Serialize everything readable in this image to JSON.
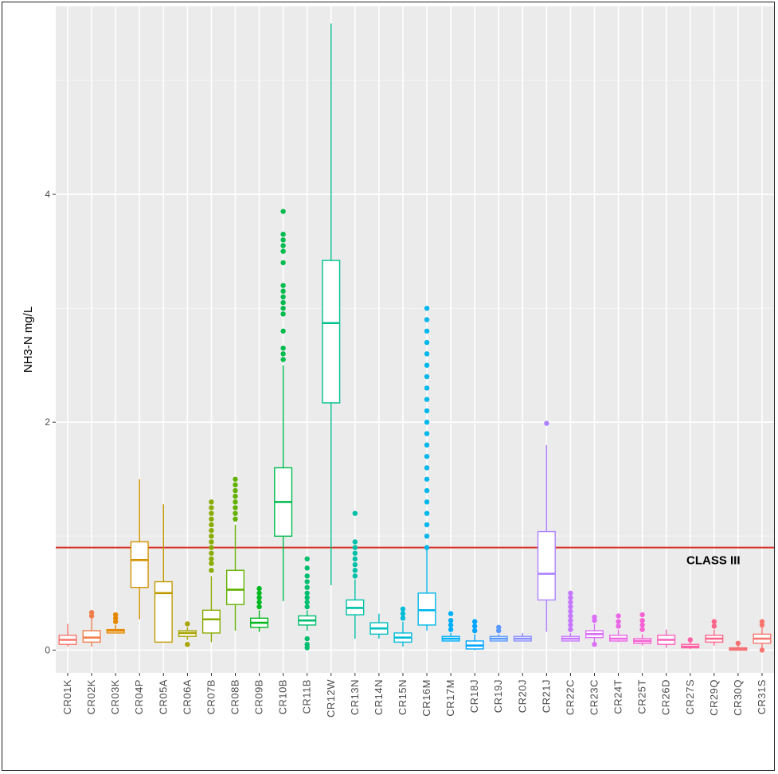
{
  "chart_data": {
    "type": "boxplot",
    "ylabel": "NH3-N mg/L",
    "xlabel": "",
    "ylim": [
      -0.2,
      5.65
    ],
    "yticks": [
      0,
      2,
      4
    ],
    "grid": true,
    "reference_line": {
      "value": 0.9,
      "label": "CLASS III",
      "color": "#d73027"
    },
    "categories": [
      "CR01K",
      "CR02K",
      "CR03K",
      "CR04P",
      "CR05A",
      "CR06A",
      "CR07B",
      "CR08B",
      "CR09B",
      "CR10B",
      "CR11B",
      "CR12W",
      "CR13N",
      "CR14N",
      "CR15N",
      "CR16M",
      "CR17M",
      "CR18J",
      "CR19J",
      "CR20J",
      "CR21J",
      "CR22C",
      "CR23C",
      "CR24T",
      "CR25T",
      "CR26D",
      "CR27S",
      "CR29Q",
      "CR30Q",
      "CR31S"
    ],
    "colors": [
      "#F8766D",
      "#F07E4B",
      "#E48800",
      "#D49200",
      "#C09B00",
      "#A8A400",
      "#8AAB00",
      "#61B200",
      "#00B81F",
      "#00BB4E",
      "#00BE6F",
      "#00C08C",
      "#00C0A7",
      "#00BFC0",
      "#00BCD7",
      "#00B7EB",
      "#00AFFA",
      "#00A5FF",
      "#5A9AFF",
      "#8B8EFF",
      "#AD82FF",
      "#C677FF",
      "#DB6EF7",
      "#EA67E6",
      "#F564D2",
      "#FB62BC",
      "#FD63A4",
      "#FB678B",
      "#F67172",
      "#F8766D"
    ],
    "boxes": [
      {
        "q1": 0.05,
        "median": 0.09,
        "q3": 0.13,
        "whisker_low": 0.03,
        "whisker_high": 0.23,
        "outliers": []
      },
      {
        "q1": 0.07,
        "median": 0.11,
        "q3": 0.17,
        "whisker_low": 0.03,
        "whisker_high": 0.29,
        "outliers": [
          0.3,
          0.33
        ]
      },
      {
        "q1": 0.15,
        "median": 0.17,
        "q3": 0.18,
        "whisker_low": 0.15,
        "whisker_high": 0.22,
        "outliers": [
          0.25,
          0.28,
          0.31
        ]
      },
      {
        "q1": 0.55,
        "median": 0.79,
        "q3": 0.95,
        "whisker_low": 0.27,
        "whisker_high": 1.5,
        "outliers": []
      },
      {
        "q1": 0.07,
        "median": 0.5,
        "q3": 0.6,
        "whisker_low": 0.07,
        "whisker_high": 1.28,
        "outliers": []
      },
      {
        "q1": 0.12,
        "median": 0.15,
        "q3": 0.17,
        "whisker_low": 0.09,
        "whisker_high": 0.2,
        "outliers": [
          0.05,
          0.23
        ]
      },
      {
        "q1": 0.15,
        "median": 0.27,
        "q3": 0.35,
        "whisker_low": 0.07,
        "whisker_high": 0.65,
        "outliers": [
          0.7,
          0.76,
          0.8,
          0.85,
          0.9,
          0.95,
          1.0,
          1.05,
          1.1,
          1.15,
          1.2,
          1.25,
          1.3
        ]
      },
      {
        "q1": 0.4,
        "median": 0.53,
        "q3": 0.7,
        "whisker_low": 0.17,
        "whisker_high": 1.1,
        "outliers": [
          1.15,
          1.2,
          1.25,
          1.3,
          1.35,
          1.4,
          1.45,
          1.5
        ]
      },
      {
        "q1": 0.2,
        "median": 0.24,
        "q3": 0.28,
        "whisker_low": 0.16,
        "whisker_high": 0.35,
        "outliers": [
          0.38,
          0.42,
          0.46,
          0.5,
          0.54
        ]
      },
      {
        "q1": 1.0,
        "median": 1.3,
        "q3": 1.6,
        "whisker_low": 0.43,
        "whisker_high": 2.5,
        "outliers": [
          2.55,
          2.6,
          2.65,
          2.8,
          2.95,
          3.0,
          3.05,
          3.1,
          3.15,
          3.2,
          3.4,
          3.5,
          3.55,
          3.6,
          3.65,
          3.85
        ]
      },
      {
        "q1": 0.22,
        "median": 0.26,
        "q3": 0.3,
        "whisker_low": 0.17,
        "whisker_high": 0.35,
        "outliers": [
          0.02,
          0.05,
          0.1,
          0.38,
          0.42,
          0.46,
          0.5,
          0.55,
          0.6,
          0.65,
          0.72,
          0.8
        ]
      },
      {
        "q1": 2.17,
        "median": 2.87,
        "q3": 3.42,
        "whisker_low": 0.57,
        "whisker_high": 5.5,
        "outliers": []
      },
      {
        "q1": 0.31,
        "median": 0.37,
        "q3": 0.44,
        "whisker_low": 0.1,
        "whisker_high": 0.62,
        "outliers": [
          0.65,
          0.7,
          0.75,
          0.8,
          0.85,
          0.9,
          0.95,
          1.2
        ]
      },
      {
        "q1": 0.14,
        "median": 0.19,
        "q3": 0.24,
        "whisker_low": 0.1,
        "whisker_high": 0.32,
        "outliers": []
      },
      {
        "q1": 0.07,
        "median": 0.11,
        "q3": 0.15,
        "whisker_low": 0.03,
        "whisker_high": 0.25,
        "outliers": [
          0.28,
          0.32,
          0.36
        ]
      },
      {
        "q1": 0.22,
        "median": 0.35,
        "q3": 0.5,
        "whisker_low": 0.17,
        "whisker_high": 0.88,
        "outliers": [
          0.9,
          1.0,
          1.1,
          1.2,
          1.3,
          1.4,
          1.5,
          1.6,
          1.7,
          1.8,
          1.9,
          2.0,
          2.1,
          2.2,
          2.3,
          2.4,
          2.5,
          2.6,
          2.7,
          2.8,
          2.9,
          3.0
        ]
      },
      {
        "q1": 0.08,
        "median": 0.1,
        "q3": 0.12,
        "whisker_low": 0.08,
        "whisker_high": 0.15,
        "outliers": [
          0.18,
          0.22,
          0.26,
          0.32
        ]
      },
      {
        "q1": 0.01,
        "median": 0.04,
        "q3": 0.08,
        "whisker_low": 0.0,
        "whisker_high": 0.14,
        "outliers": [
          0.17,
          0.21,
          0.25
        ]
      },
      {
        "q1": 0.08,
        "median": 0.1,
        "q3": 0.12,
        "whisker_low": 0.08,
        "whisker_high": 0.14,
        "outliers": [
          0.17,
          0.2
        ]
      },
      {
        "q1": 0.08,
        "median": 0.1,
        "q3": 0.12,
        "whisker_low": 0.08,
        "whisker_high": 0.15,
        "outliers": []
      },
      {
        "q1": 0.44,
        "median": 0.67,
        "q3": 1.04,
        "whisker_low": 0.16,
        "whisker_high": 1.8,
        "outliers": [
          1.99
        ]
      },
      {
        "q1": 0.08,
        "median": 0.1,
        "q3": 0.12,
        "whisker_low": 0.08,
        "whisker_high": 0.15,
        "outliers": [
          0.18,
          0.22,
          0.26,
          0.3,
          0.34,
          0.38,
          0.42,
          0.46,
          0.5
        ]
      },
      {
        "q1": 0.11,
        "median": 0.14,
        "q3": 0.17,
        "whisker_low": 0.07,
        "whisker_high": 0.23,
        "outliers": [
          0.05,
          0.26,
          0.29
        ]
      },
      {
        "q1": 0.08,
        "median": 0.1,
        "q3": 0.13,
        "whisker_low": 0.07,
        "whisker_high": 0.18,
        "outliers": [
          0.21,
          0.25,
          0.3
        ]
      },
      {
        "q1": 0.06,
        "median": 0.08,
        "q3": 0.1,
        "whisker_low": 0.04,
        "whisker_high": 0.14,
        "outliers": [
          0.18,
          0.22,
          0.26,
          0.31
        ]
      },
      {
        "q1": 0.05,
        "median": 0.09,
        "q3": 0.13,
        "whisker_low": 0.02,
        "whisker_high": 0.18,
        "outliers": []
      },
      {
        "q1": 0.02,
        "median": 0.03,
        "q3": 0.05,
        "whisker_low": 0.01,
        "whisker_high": 0.07,
        "outliers": [
          0.09
        ]
      },
      {
        "q1": 0.07,
        "median": 0.1,
        "q3": 0.13,
        "whisker_low": 0.04,
        "whisker_high": 0.18,
        "outliers": [
          0.21,
          0.25
        ]
      },
      {
        "q1": 0.0,
        "median": 0.01,
        "q3": 0.02,
        "whisker_low": 0.0,
        "whisker_high": 0.04,
        "outliers": [
          0.06
        ]
      },
      {
        "q1": 0.06,
        "median": 0.1,
        "q3": 0.14,
        "whisker_low": 0.01,
        "whisker_high": 0.2,
        "outliers": [
          0.0,
          0.22,
          0.25
        ]
      }
    ]
  }
}
